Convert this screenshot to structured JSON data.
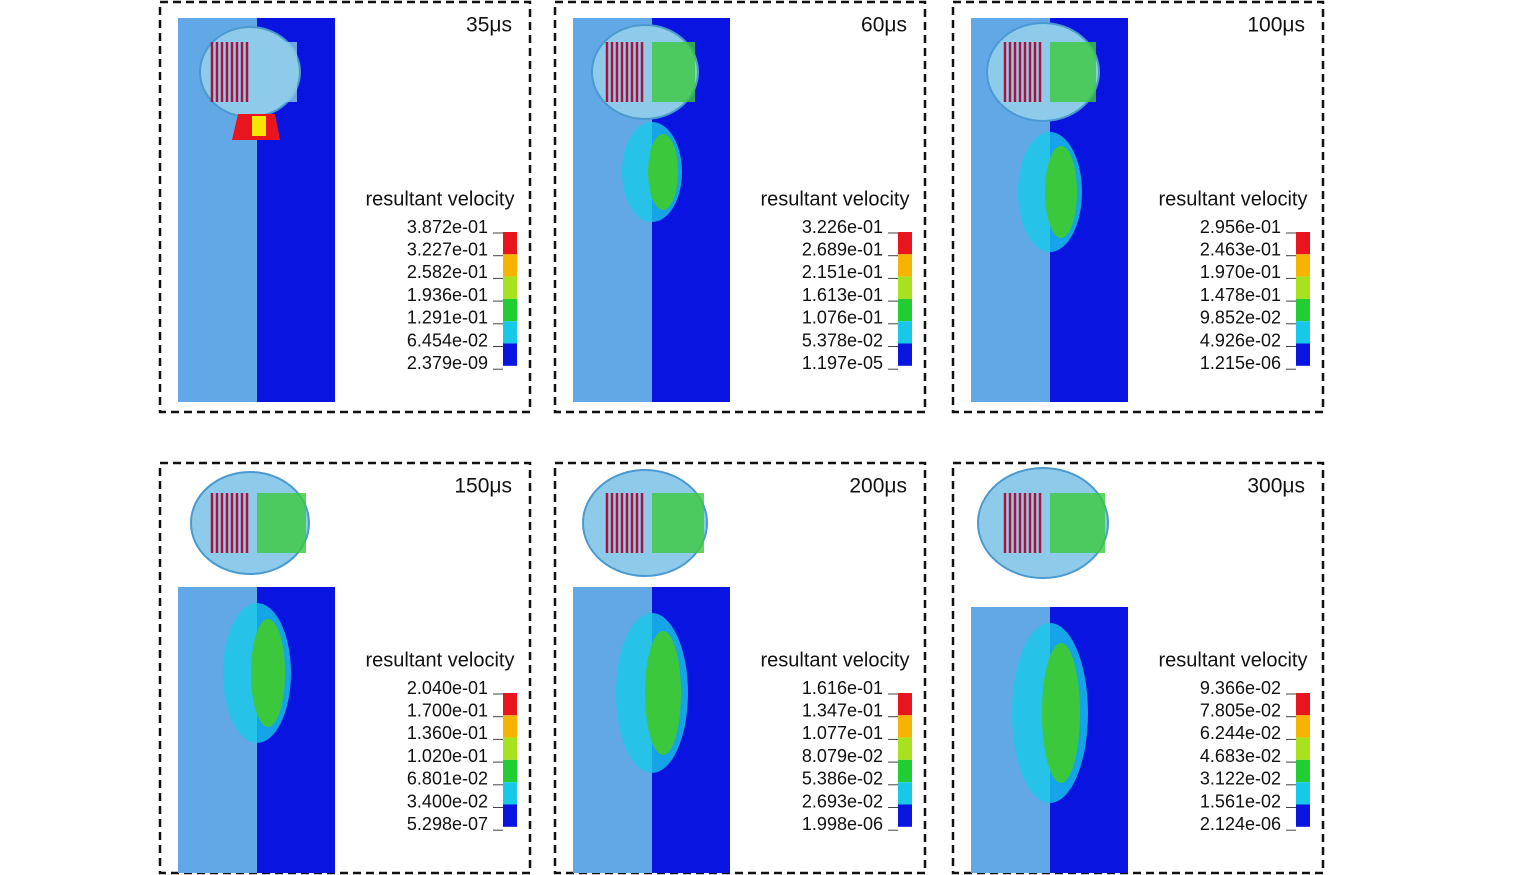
{
  "panels": [
    {
      "time": "35μs",
      "legend_title": "resultant velocity",
      "legend_labels": [
        "3.872e-01",
        "3.227e-01",
        "2.582e-01",
        "1.936e-01",
        "1.291e-01",
        "6.454e-02",
        "2.379e-09"
      ]
    },
    {
      "time": "60μs",
      "legend_title": "resultant velocity",
      "legend_labels": [
        "3.226e-01",
        "2.689e-01",
        "2.151e-01",
        "1.613e-01",
        "1.076e-01",
        "5.378e-02",
        "1.197e-05"
      ]
    },
    {
      "time": "100μs",
      "legend_title": "resultant velocity",
      "legend_labels": [
        "2.956e-01",
        "2.463e-01",
        "1.970e-01",
        "1.478e-01",
        "9.852e-02",
        "4.926e-02",
        "1.215e-06"
      ]
    },
    {
      "time": "150μs",
      "legend_title": "resultant velocity",
      "legend_labels": [
        "2.040e-01",
        "1.700e-01",
        "1.360e-01",
        "1.020e-01",
        "6.801e-02",
        "3.400e-02",
        "5.298e-07"
      ]
    },
    {
      "time": "200μs",
      "legend_title": "resultant velocity",
      "legend_labels": [
        "1.616e-01",
        "1.347e-01",
        "1.077e-01",
        "8.079e-02",
        "5.386e-02",
        "2.693e-02",
        "1.998e-06"
      ]
    },
    {
      "time": "300μs",
      "legend_title": "resultant velocity",
      "legend_labels": [
        "9.366e-02",
        "7.805e-02",
        "6.244e-02",
        "4.683e-02",
        "3.122e-02",
        "1.561e-02",
        "2.124e-06"
      ]
    }
  ]
}
